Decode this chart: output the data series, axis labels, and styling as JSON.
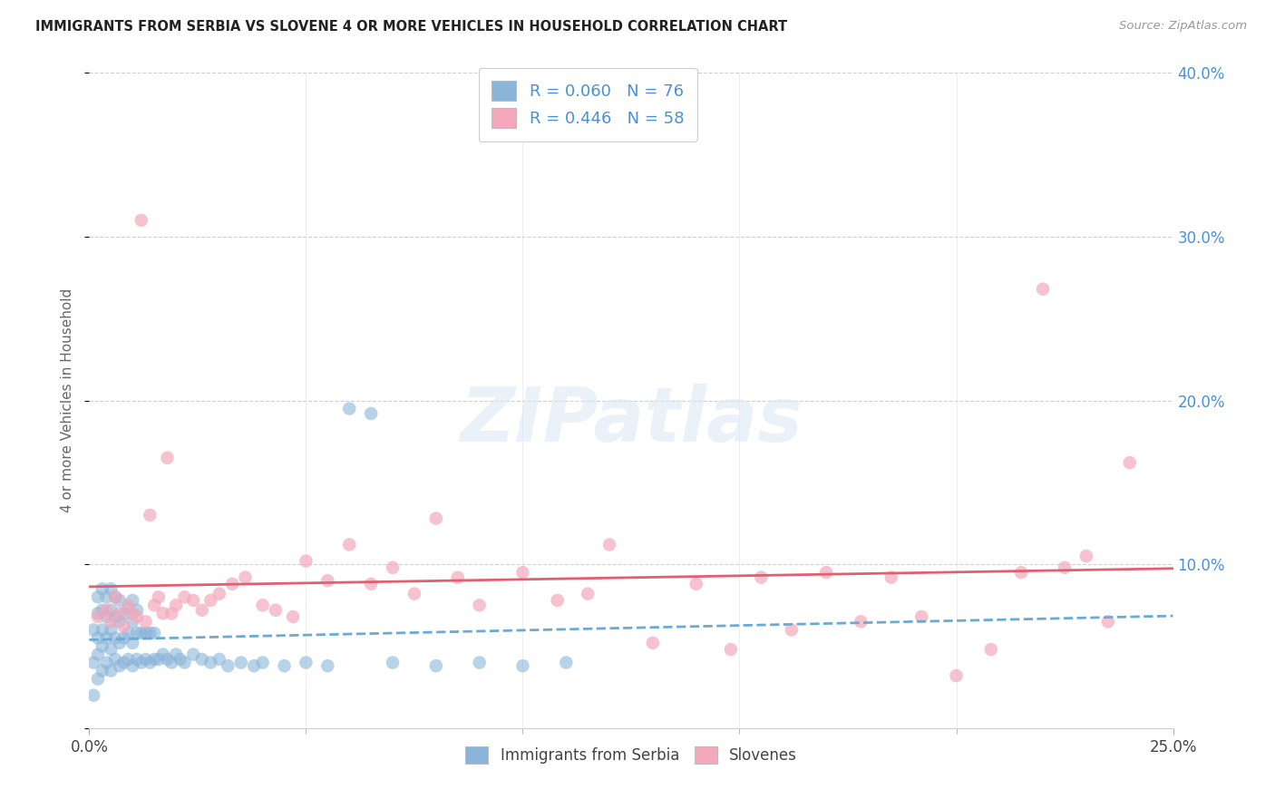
{
  "title": "IMMIGRANTS FROM SERBIA VS SLOVENE 4 OR MORE VEHICLES IN HOUSEHOLD CORRELATION CHART",
  "source": "Source: ZipAtlas.com",
  "ylabel": "4 or more Vehicles in Household",
  "xlim": [
    0.0,
    0.25
  ],
  "ylim": [
    0.0,
    0.4
  ],
  "xtick_positions": [
    0.0,
    0.25
  ],
  "xtick_labels": [
    "0.0%",
    "25.0%"
  ],
  "ytick_positions": [
    0.0,
    0.1,
    0.2,
    0.3,
    0.4
  ],
  "ytick_labels": [
    "",
    "10.0%",
    "20.0%",
    "30.0%",
    "40.0%"
  ],
  "grid_yticks": [
    0.1,
    0.2,
    0.3,
    0.4
  ],
  "legend_label1": "Immigrants from Serbia",
  "legend_label2": "Slovenes",
  "r1": "R = 0.060",
  "n1": "N = 76",
  "r2": "R = 0.446",
  "n2": "N = 58",
  "color_blue": "#8ab4d8",
  "color_pink": "#f5a8bc",
  "line_blue_color": "#6aaad4",
  "line_pink_color": "#e06070",
  "watermark_text": "ZIPatlas",
  "bg": "#ffffff",
  "grid_color": "#d0d0d0",
  "serbia_x": [
    0.001,
    0.001,
    0.001,
    0.002,
    0.002,
    0.002,
    0.002,
    0.002,
    0.003,
    0.003,
    0.003,
    0.003,
    0.003,
    0.004,
    0.004,
    0.004,
    0.004,
    0.005,
    0.005,
    0.005,
    0.005,
    0.005,
    0.006,
    0.006,
    0.006,
    0.006,
    0.007,
    0.007,
    0.007,
    0.007,
    0.008,
    0.008,
    0.008,
    0.009,
    0.009,
    0.009,
    0.01,
    0.01,
    0.01,
    0.01,
    0.011,
    0.011,
    0.011,
    0.012,
    0.012,
    0.013,
    0.013,
    0.014,
    0.014,
    0.015,
    0.015,
    0.016,
    0.017,
    0.018,
    0.019,
    0.02,
    0.021,
    0.022,
    0.024,
    0.026,
    0.028,
    0.03,
    0.032,
    0.035,
    0.038,
    0.04,
    0.045,
    0.05,
    0.055,
    0.06,
    0.065,
    0.07,
    0.08,
    0.09,
    0.1,
    0.11
  ],
  "serbia_y": [
    0.04,
    0.02,
    0.06,
    0.03,
    0.045,
    0.055,
    0.07,
    0.08,
    0.035,
    0.05,
    0.06,
    0.072,
    0.085,
    0.04,
    0.055,
    0.068,
    0.08,
    0.035,
    0.048,
    0.06,
    0.072,
    0.085,
    0.042,
    0.055,
    0.068,
    0.08,
    0.038,
    0.052,
    0.065,
    0.078,
    0.04,
    0.055,
    0.07,
    0.042,
    0.058,
    0.073,
    0.038,
    0.052,
    0.065,
    0.078,
    0.042,
    0.058,
    0.072,
    0.04,
    0.058,
    0.042,
    0.058,
    0.04,
    0.058,
    0.042,
    0.058,
    0.042,
    0.045,
    0.042,
    0.04,
    0.045,
    0.042,
    0.04,
    0.045,
    0.042,
    0.04,
    0.042,
    0.038,
    0.04,
    0.038,
    0.04,
    0.038,
    0.04,
    0.038,
    0.195,
    0.192,
    0.04,
    0.038,
    0.04,
    0.038,
    0.04
  ],
  "slovene_x": [
    0.002,
    0.004,
    0.005,
    0.006,
    0.007,
    0.008,
    0.009,
    0.01,
    0.011,
    0.012,
    0.013,
    0.014,
    0.015,
    0.016,
    0.017,
    0.018,
    0.019,
    0.02,
    0.022,
    0.024,
    0.026,
    0.028,
    0.03,
    0.033,
    0.036,
    0.04,
    0.043,
    0.047,
    0.05,
    0.055,
    0.06,
    0.065,
    0.07,
    0.075,
    0.08,
    0.085,
    0.09,
    0.1,
    0.108,
    0.115,
    0.12,
    0.13,
    0.14,
    0.148,
    0.155,
    0.162,
    0.17,
    0.178,
    0.185,
    0.192,
    0.2,
    0.208,
    0.215,
    0.22,
    0.225,
    0.23,
    0.235,
    0.24
  ],
  "slovene_y": [
    0.068,
    0.072,
    0.065,
    0.08,
    0.07,
    0.062,
    0.075,
    0.07,
    0.068,
    0.31,
    0.065,
    0.13,
    0.075,
    0.08,
    0.07,
    0.165,
    0.07,
    0.075,
    0.08,
    0.078,
    0.072,
    0.078,
    0.082,
    0.088,
    0.092,
    0.075,
    0.072,
    0.068,
    0.102,
    0.09,
    0.112,
    0.088,
    0.098,
    0.082,
    0.128,
    0.092,
    0.075,
    0.095,
    0.078,
    0.082,
    0.112,
    0.052,
    0.088,
    0.048,
    0.092,
    0.06,
    0.095,
    0.065,
    0.092,
    0.068,
    0.032,
    0.048,
    0.095,
    0.268,
    0.098,
    0.105,
    0.065,
    0.162
  ]
}
